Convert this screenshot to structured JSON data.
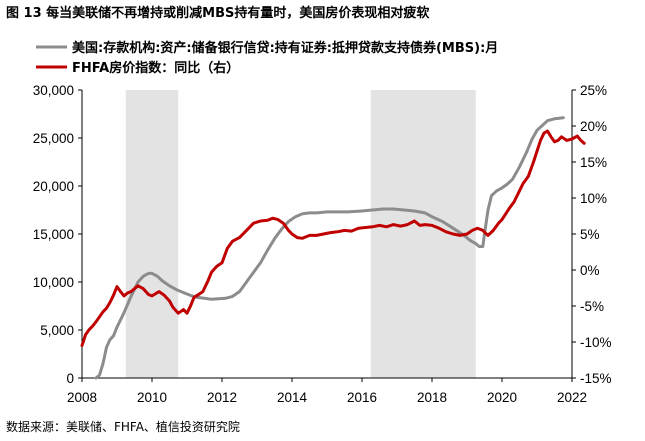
{
  "title": "图 13 每当美联储不再增持或削减MBS持有量时，美国房价表现相对疲软",
  "source": "数据来源：美联储、FHFA、植信投资研究院",
  "chart_data": {
    "type": "line",
    "legend": [
      {
        "name": "美国:存款机构:资产:储备银行信贷:持有证券:抵押贷款支持债券(MBS):月",
        "color": "#8c8c8c"
      },
      {
        "name": "FHFA房价指数：同比（右）",
        "color": "#c00000"
      }
    ],
    "x_ticks": [
      "2008",
      "2010",
      "2012",
      "2014",
      "2016",
      "2018",
      "2020",
      "2022"
    ],
    "x_range": [
      2008,
      2022
    ],
    "y_left": {
      "ticks": [
        "0",
        "5,000",
        "10,000",
        "15,000",
        "20,000",
        "25,000",
        "30,000"
      ],
      "range": [
        0,
        30000
      ]
    },
    "y_right": {
      "ticks": [
        "-15%",
        "-10%",
        "-5%",
        "0%",
        "5%",
        "10%",
        "15%",
        "20%",
        "25%"
      ],
      "range": [
        -15,
        25
      ]
    },
    "shaded_periods": [
      [
        2009.25,
        2010.75
      ],
      [
        2016.25,
        2019.25
      ]
    ],
    "series": [
      {
        "name": "美国:存款机构:资产:储备银行信贷:持有证券:抵押贷款支持债券(MBS):月",
        "axis": "left",
        "color": "#8c8c8c",
        "points": [
          [
            2008.4,
            0
          ],
          [
            2008.5,
            300
          ],
          [
            2008.6,
            1500
          ],
          [
            2008.7,
            3200
          ],
          [
            2008.8,
            4000
          ],
          [
            2008.9,
            4400
          ],
          [
            2009.0,
            5300
          ],
          [
            2009.2,
            6800
          ],
          [
            2009.4,
            8500
          ],
          [
            2009.6,
            10000
          ],
          [
            2009.75,
            10600
          ],
          [
            2009.9,
            10900
          ],
          [
            2010.0,
            10900
          ],
          [
            2010.15,
            10600
          ],
          [
            2010.3,
            10100
          ],
          [
            2010.5,
            9600
          ],
          [
            2010.7,
            9200
          ],
          [
            2010.9,
            8900
          ],
          [
            2011.1,
            8600
          ],
          [
            2011.3,
            8400
          ],
          [
            2011.5,
            8300
          ],
          [
            2011.7,
            8200
          ],
          [
            2011.9,
            8250
          ],
          [
            2012.1,
            8300
          ],
          [
            2012.3,
            8500
          ],
          [
            2012.5,
            9000
          ],
          [
            2012.7,
            10000
          ],
          [
            2012.9,
            11000
          ],
          [
            2013.1,
            12000
          ],
          [
            2013.3,
            13300
          ],
          [
            2013.5,
            14500
          ],
          [
            2013.7,
            15500
          ],
          [
            2013.9,
            16300
          ],
          [
            2014.1,
            16800
          ],
          [
            2014.3,
            17100
          ],
          [
            2014.5,
            17200
          ],
          [
            2014.7,
            17200
          ],
          [
            2015.0,
            17300
          ],
          [
            2015.3,
            17300
          ],
          [
            2015.6,
            17300
          ],
          [
            2016.0,
            17400
          ],
          [
            2016.3,
            17500
          ],
          [
            2016.6,
            17600
          ],
          [
            2016.9,
            17600
          ],
          [
            2017.2,
            17500
          ],
          [
            2017.5,
            17400
          ],
          [
            2017.8,
            17200
          ],
          [
            2018.0,
            16800
          ],
          [
            2018.3,
            16300
          ],
          [
            2018.6,
            15600
          ],
          [
            2018.9,
            14900
          ],
          [
            2019.1,
            14300
          ],
          [
            2019.25,
            14000
          ],
          [
            2019.35,
            13700
          ],
          [
            2019.45,
            13700
          ],
          [
            2019.5,
            15000
          ],
          [
            2019.6,
            17500
          ],
          [
            2019.7,
            19000
          ],
          [
            2019.85,
            19500
          ],
          [
            2020.0,
            19800
          ],
          [
            2020.15,
            20200
          ],
          [
            2020.3,
            20700
          ],
          [
            2020.5,
            22000
          ],
          [
            2020.7,
            23500
          ],
          [
            2020.85,
            24800
          ],
          [
            2021.0,
            25800
          ],
          [
            2021.15,
            26300
          ],
          [
            2021.3,
            26800
          ],
          [
            2021.5,
            27000
          ],
          [
            2021.75,
            27100
          ]
        ]
      },
      {
        "name": "FHFA房价指数：同比（右）",
        "axis": "right",
        "color": "#c00000",
        "points": [
          [
            2008.0,
            -10.5
          ],
          [
            2008.1,
            -9.0
          ],
          [
            2008.2,
            -8.3
          ],
          [
            2008.3,
            -7.8
          ],
          [
            2008.4,
            -7.2
          ],
          [
            2008.5,
            -6.5
          ],
          [
            2008.6,
            -5.8
          ],
          [
            2008.7,
            -5.3
          ],
          [
            2008.8,
            -4.5
          ],
          [
            2008.9,
            -3.5
          ],
          [
            2009.0,
            -2.3
          ],
          [
            2009.1,
            -3.0
          ],
          [
            2009.2,
            -3.6
          ],
          [
            2009.3,
            -3.2
          ],
          [
            2009.4,
            -3.0
          ],
          [
            2009.5,
            -2.6
          ],
          [
            2009.6,
            -2.2
          ],
          [
            2009.75,
            -2.6
          ],
          [
            2009.9,
            -3.4
          ],
          [
            2010.0,
            -3.6
          ],
          [
            2010.2,
            -3.0
          ],
          [
            2010.35,
            -3.5
          ],
          [
            2010.5,
            -4.3
          ],
          [
            2010.6,
            -5.2
          ],
          [
            2010.75,
            -6.0
          ],
          [
            2010.9,
            -5.5
          ],
          [
            2011.0,
            -6.0
          ],
          [
            2011.1,
            -5.0
          ],
          [
            2011.2,
            -3.8
          ],
          [
            2011.3,
            -3.5
          ],
          [
            2011.45,
            -3.0
          ],
          [
            2011.6,
            -1.5
          ],
          [
            2011.7,
            -0.3
          ],
          [
            2011.85,
            0.5
          ],
          [
            2012.0,
            1.0
          ],
          [
            2012.15,
            3.0
          ],
          [
            2012.3,
            4.0
          ],
          [
            2012.5,
            4.5
          ],
          [
            2012.7,
            5.5
          ],
          [
            2012.9,
            6.5
          ],
          [
            2013.1,
            6.8
          ],
          [
            2013.3,
            6.9
          ],
          [
            2013.45,
            7.2
          ],
          [
            2013.6,
            7.0
          ],
          [
            2013.75,
            6.5
          ],
          [
            2013.9,
            5.5
          ],
          [
            2014.0,
            5.0
          ],
          [
            2014.15,
            4.5
          ],
          [
            2014.3,
            4.4
          ],
          [
            2014.5,
            4.8
          ],
          [
            2014.7,
            4.8
          ],
          [
            2014.9,
            5.0
          ],
          [
            2015.1,
            5.2
          ],
          [
            2015.3,
            5.3
          ],
          [
            2015.5,
            5.5
          ],
          [
            2015.7,
            5.4
          ],
          [
            2015.9,
            5.8
          ],
          [
            2016.1,
            5.9
          ],
          [
            2016.3,
            6.0
          ],
          [
            2016.5,
            6.2
          ],
          [
            2016.7,
            6.0
          ],
          [
            2016.9,
            6.3
          ],
          [
            2017.1,
            6.1
          ],
          [
            2017.3,
            6.3
          ],
          [
            2017.5,
            6.8
          ],
          [
            2017.65,
            6.2
          ],
          [
            2017.8,
            6.3
          ],
          [
            2018.0,
            6.2
          ],
          [
            2018.2,
            5.8
          ],
          [
            2018.4,
            5.3
          ],
          [
            2018.6,
            5.0
          ],
          [
            2018.8,
            4.8
          ],
          [
            2019.0,
            5.0
          ],
          [
            2019.15,
            5.5
          ],
          [
            2019.3,
            5.8
          ],
          [
            2019.45,
            5.5
          ],
          [
            2019.6,
            4.8
          ],
          [
            2019.75,
            5.5
          ],
          [
            2019.9,
            6.5
          ],
          [
            2020.0,
            7.0
          ],
          [
            2020.2,
            8.5
          ],
          [
            2020.35,
            9.5
          ],
          [
            2020.5,
            11.0
          ],
          [
            2020.6,
            12.0
          ],
          [
            2020.75,
            13.0
          ],
          [
            2020.9,
            15.0
          ],
          [
            2021.0,
            16.5
          ],
          [
            2021.1,
            18.0
          ],
          [
            2021.2,
            19.0
          ],
          [
            2021.3,
            19.3
          ],
          [
            2021.4,
            18.5
          ],
          [
            2021.5,
            17.8
          ],
          [
            2021.6,
            18.0
          ],
          [
            2021.7,
            18.5
          ],
          [
            2021.85,
            18.0
          ],
          [
            2022.0,
            18.2
          ],
          [
            2022.15,
            18.6
          ],
          [
            2022.25,
            18.0
          ],
          [
            2022.35,
            17.6
          ]
        ]
      }
    ]
  }
}
